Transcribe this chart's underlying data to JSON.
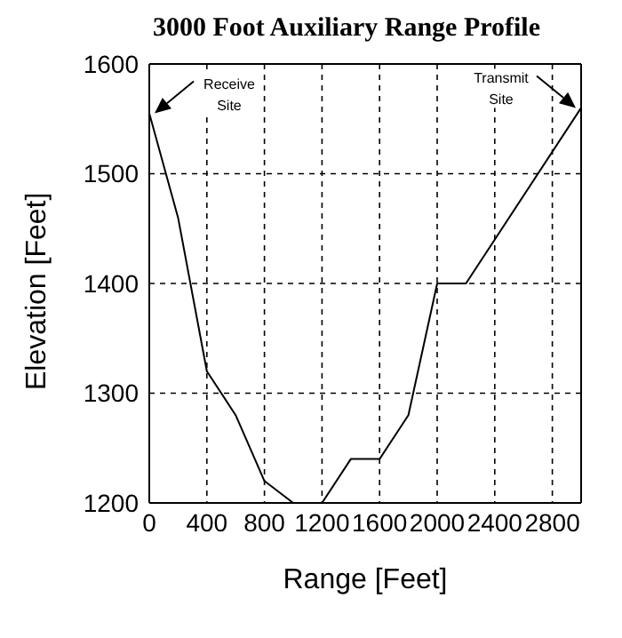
{
  "chart_data": {
    "type": "line",
    "title": "3000 Foot Auxiliary Range Profile",
    "xlabel": "Range [Feet]",
    "ylabel": "Elevation [Feet]",
    "x": [
      0,
      200,
      400,
      600,
      800,
      1000,
      1200,
      1400,
      1600,
      1800,
      2000,
      2200,
      3000
    ],
    "series": [
      {
        "color": "#000000",
        "values": [
          1555,
          1460,
          1320,
          1280,
          1220,
          1200,
          1200,
          1240,
          1240,
          1280,
          1400,
          1400,
          1560
        ]
      }
    ],
    "xlim": [
      0,
      3000
    ],
    "xticks": [
      0,
      400,
      800,
      1200,
      1600,
      2000,
      2400,
      2800
    ],
    "ylim": [
      1200,
      1600
    ],
    "yticks": [
      1200,
      1300,
      1400,
      1500,
      1600
    ],
    "grid": true,
    "marker": "none",
    "line_style": "solid",
    "annotations": [
      "Receive Site",
      "Transmit Site"
    ]
  }
}
